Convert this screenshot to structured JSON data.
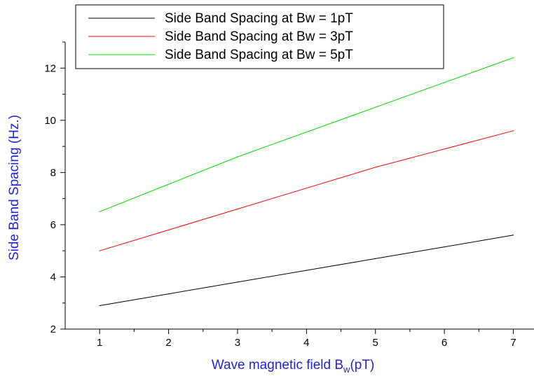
{
  "chart_data": {
    "type": "line",
    "title": "",
    "xlabel": "Wave magnetic field B",
    "xlabel_sub": "w",
    "xlabel_suffix": "(pT)",
    "ylabel": "Side Band Spacing (Hz.)",
    "axis_title_color": "#2323d8",
    "x": [
      1,
      2,
      3,
      4,
      5,
      6,
      7
    ],
    "xlim": [
      0.5,
      7.3
    ],
    "ylim": [
      2,
      13
    ],
    "xticks": [
      1,
      2,
      3,
      4,
      5,
      6,
      7
    ],
    "yticks": [
      2,
      4,
      6,
      8,
      10,
      12
    ],
    "grid": false,
    "legend_position": "top",
    "series": [
      {
        "name": "Side Band Spacing at Bw = 1pT",
        "color": "#000000",
        "values": [
          2.9,
          3.35,
          3.8,
          4.25,
          4.7,
          5.15,
          5.6
        ]
      },
      {
        "name": "Side Band Spacing at Bw = 3pT",
        "color": "#ff0000",
        "values": [
          5.0,
          5.8,
          6.6,
          7.4,
          8.2,
          8.9,
          9.6
        ]
      },
      {
        "name": "Side Band Spacing at Bw = 5pT",
        "color": "#00dd00",
        "values": [
          6.5,
          7.55,
          8.6,
          9.55,
          10.5,
          11.45,
          12.4
        ]
      }
    ]
  }
}
